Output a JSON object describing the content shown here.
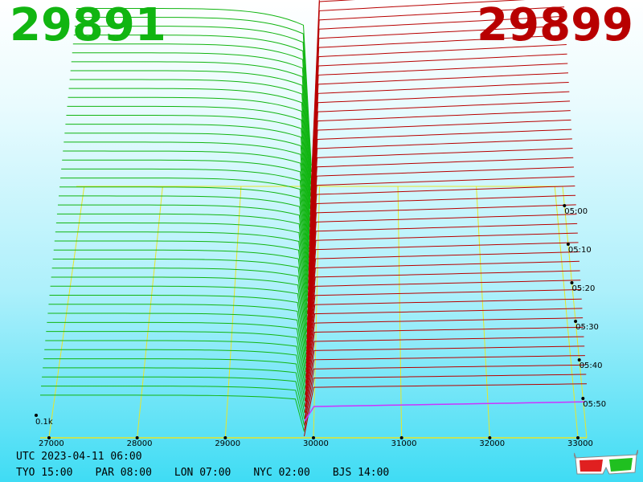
{
  "header": {
    "bid_price": "29891",
    "ask_price": "29899",
    "bid_color": "#11b511",
    "ask_color": "#b80000"
  },
  "footer": {
    "utc": "UTC 2023-04-11 06:00",
    "zones": [
      "TYO 15:00",
      "PAR 08:00",
      "LON 07:00",
      "NYC 02:00",
      "BJS 14:00"
    ]
  },
  "icons": {
    "glasses": "3d-glasses-icon"
  },
  "chart_data": {
    "type": "area",
    "title": "",
    "x_ticks": [
      "27000",
      "28000",
      "29000",
      "30000",
      "31000",
      "32000",
      "33000"
    ],
    "x_tick_values": [
      27000,
      28000,
      29000,
      30000,
      31000,
      32000,
      33000
    ],
    "x_range": [
      26900,
      33100
    ],
    "depth_label": "0.1k",
    "time_ticks": [
      "05:00",
      "05:10",
      "05:20",
      "05:30",
      "05:40",
      "05:50"
    ],
    "mid_price": 29895,
    "series": [
      {
        "name": "bids",
        "color": "#11b511"
      },
      {
        "name": "asks",
        "color": "#b80000"
      }
    ],
    "grid_color": "#e6e62a",
    "highlight_color": "#cc33ff"
  }
}
